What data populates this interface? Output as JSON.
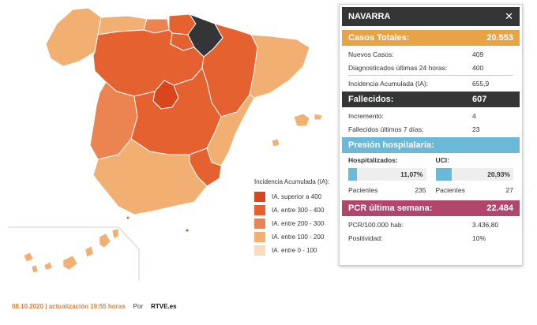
{
  "legend": {
    "title": "Incidencia Acumulada (IA):",
    "items": [
      {
        "label": "IA. superior a 400",
        "color": "#d8461d"
      },
      {
        "label": "IA. entre 300 - 400",
        "color": "#e5612f"
      },
      {
        "label": "IA. entre 200 - 300",
        "color": "#ec8452"
      },
      {
        "label": "IA. entre 100 - 200",
        "color": "#f1b072"
      },
      {
        "label": "IA. entre 0 - 100",
        "color": "#f9dcc0"
      }
    ]
  },
  "footer": {
    "date": "08.10.2020 | actualización 19:55 horas",
    "by": "Por",
    "source": "RTVE.es"
  },
  "panel": {
    "region": "NAVARRA",
    "close_icon": "close-icon",
    "casos": {
      "label": "Casos Totales:",
      "value": "20.553",
      "rows": [
        {
          "label": "Nuevos Casos:",
          "value": "409"
        },
        {
          "label": "Diagnosticados últimas 24 horas:",
          "value": "400"
        }
      ],
      "ia": {
        "label": "Incidencia Acumulada (IA):",
        "value": "655,9"
      }
    },
    "fallecidos": {
      "label": "Fallecidos:",
      "value": "607",
      "rows": [
        {
          "label": "Incremento:",
          "value": "4"
        },
        {
          "label": "Fallecidos últimos 7 días:",
          "value": "23"
        }
      ]
    },
    "presion": {
      "label": "Presión hospitalaria:",
      "hosp": {
        "label": "Hospitalizados:",
        "pct": "11,07%",
        "fill": 11.07,
        "pac_label": "Pacientes",
        "pac_value": "235"
      },
      "uci": {
        "label": "UCI:",
        "pct": "20,93%",
        "fill": 20.93,
        "pac_label": "Pacientes",
        "pac_value": "27"
      }
    },
    "pcr": {
      "label": "PCR última semana:",
      "value": "22.484",
      "rows": [
        {
          "label": "PCR/100.000 hab:",
          "value": "3.436,80"
        },
        {
          "label": "Positividad:",
          "value": "10%"
        }
      ]
    }
  }
}
